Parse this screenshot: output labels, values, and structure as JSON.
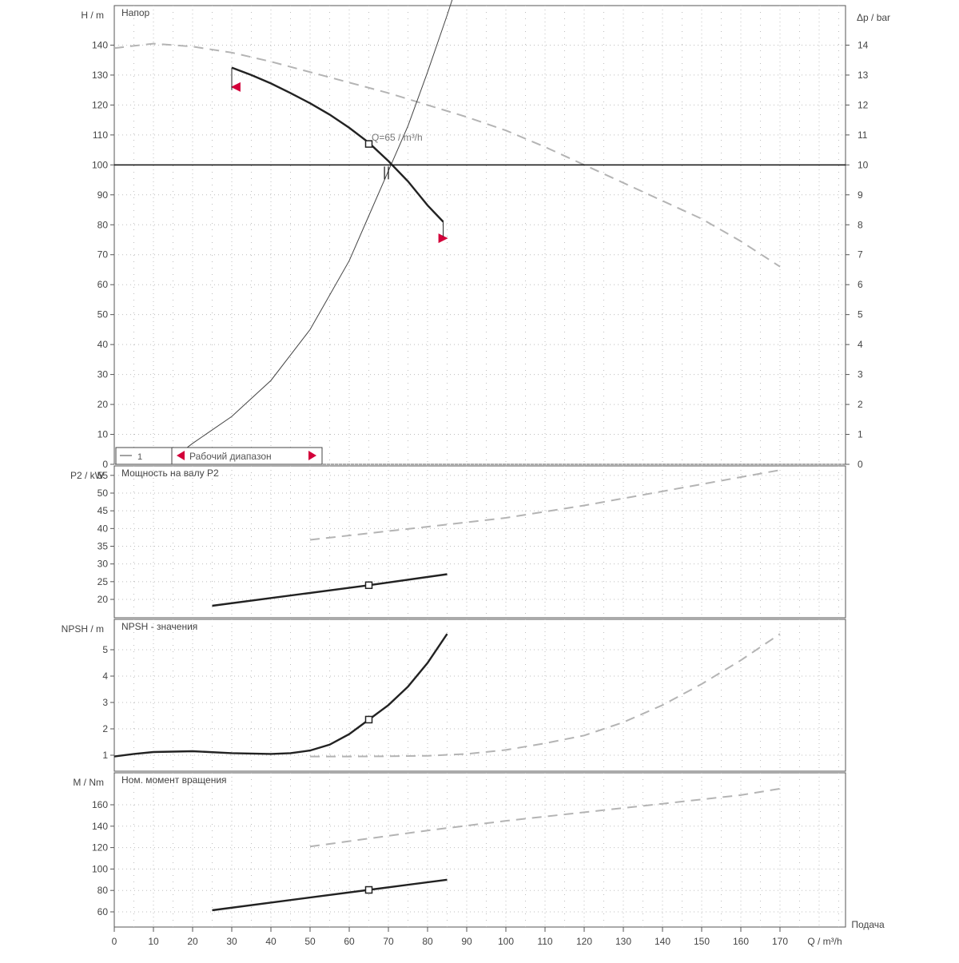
{
  "chart_data": [
    {
      "type": "line",
      "title": "Напор",
      "ylabel": "H / m",
      "ylabel_right": "Δp / bar",
      "xlim": [
        0,
        185
      ],
      "ylim": [
        0,
        155
      ],
      "ylim_right": [
        0,
        15.5
      ],
      "yticks": [
        0,
        10,
        20,
        30,
        40,
        50,
        60,
        70,
        80,
        90,
        100,
        110,
        120,
        130,
        140
      ],
      "yticks_right": [
        0,
        1,
        2,
        3,
        4,
        5,
        6,
        7,
        8,
        9,
        10,
        11,
        12,
        13,
        14
      ],
      "grid": true,
      "series": [
        {
          "style": "solid-bold",
          "x": [
            30,
            35,
            40,
            45,
            50,
            55,
            60,
            65,
            70,
            75,
            80,
            84
          ],
          "y": [
            132.5,
            130.0,
            127.2,
            124.0,
            120.6,
            116.8,
            112.4,
            107.4,
            101.3,
            94.5,
            86.5,
            81.0
          ]
        },
        {
          "style": "dashed-gray",
          "x": [
            0,
            10,
            20,
            30,
            40,
            50,
            60,
            70,
            80,
            90,
            100,
            110,
            120,
            130,
            140,
            150,
            160,
            170
          ],
          "y": [
            139,
            140.5,
            139.5,
            137.5,
            134.5,
            131,
            127.5,
            124,
            120,
            116,
            111.5,
            106,
            100,
            94,
            88,
            82,
            74.5,
            66
          ]
        },
        {
          "style": "system-curve",
          "x": [
            17,
            20,
            30,
            40,
            50,
            60,
            65,
            70,
            75,
            80,
            85,
            90
          ],
          "y": [
            4,
            7,
            16,
            28,
            45,
            68,
            83,
            98,
            113,
            131,
            150,
            170
          ]
        }
      ],
      "horizontal_line": 100,
      "duty_point": {
        "x": 65,
        "y": 107
      },
      "duty_label": "Q=65 / m³/h",
      "range_markers": [
        {
          "x": 31,
          "y": 126,
          "side": "left"
        },
        {
          "x": 84,
          "y": 75.5,
          "side": "right"
        }
      ],
      "legend": {
        "curve_label": "1",
        "range_label": "Рабочий диапазон"
      }
    },
    {
      "type": "line",
      "title": "Мощность на валу P2",
      "ylabel": "P2 / kW",
      "ylim": [
        15,
        57
      ],
      "yticks": [
        20,
        25,
        30,
        35,
        40,
        45,
        50,
        55
      ],
      "series": [
        {
          "style": "solid-bold",
          "x": [
            25,
            65,
            85
          ],
          "y": [
            18.2,
            24.0,
            27.1
          ]
        },
        {
          "style": "dashed-gray",
          "x": [
            50,
            80,
            100,
            120,
            140,
            160,
            170
          ],
          "y": [
            36.8,
            40.5,
            43.0,
            46.5,
            50.5,
            54.5,
            56.5
          ]
        }
      ],
      "duty_point": {
        "x": 65,
        "y": 24.0
      }
    },
    {
      "type": "line",
      "title": "NPSH - значения",
      "ylabel": "NPSH / m",
      "ylim": [
        0.6,
        6
      ],
      "yticks": [
        1,
        2,
        3,
        4,
        5
      ],
      "series": [
        {
          "style": "solid-bold",
          "x": [
            0,
            5,
            10,
            20,
            30,
            40,
            45,
            50,
            55,
            60,
            65,
            70,
            75,
            80,
            85
          ],
          "y": [
            0.95,
            1.05,
            1.12,
            1.15,
            1.08,
            1.05,
            1.08,
            1.18,
            1.4,
            1.8,
            2.35,
            2.9,
            3.6,
            4.5,
            5.6
          ]
        },
        {
          "style": "dashed-gray",
          "x": [
            50,
            60,
            70,
            80,
            90,
            100,
            110,
            120,
            130,
            140,
            150,
            160,
            170
          ],
          "y": [
            0.95,
            0.95,
            0.96,
            0.98,
            1.05,
            1.2,
            1.45,
            1.75,
            2.25,
            2.9,
            3.7,
            4.6,
            5.6
          ]
        }
      ],
      "duty_point": {
        "x": 65,
        "y": 2.35
      }
    },
    {
      "type": "line",
      "title": "Ном. момент вращения",
      "ylabel": "M / Nm",
      "xlabel": "Q / m³/h",
      "xlabel_right": "Подача",
      "ylim": [
        50,
        175
      ],
      "yticks": [
        60,
        80,
        100,
        120,
        140,
        160
      ],
      "xticks": [
        0,
        10,
        20,
        30,
        40,
        50,
        60,
        70,
        80,
        90,
        100,
        110,
        120,
        130,
        140,
        150,
        160,
        170
      ],
      "series": [
        {
          "style": "solid-bold",
          "x": [
            25,
            65,
            85
          ],
          "y": [
            61.5,
            80.5,
            90.0
          ]
        },
        {
          "style": "dashed-gray",
          "x": [
            50,
            80,
            100,
            120,
            140,
            160,
            170
          ],
          "y": [
            121,
            136,
            145,
            153,
            161,
            169,
            175
          ]
        }
      ],
      "duty_point": {
        "x": 65,
        "y": 80.5
      }
    }
  ],
  "colors": {
    "bold": "#222222",
    "dashed": "#b4b4b4",
    "grid": "#bdbdbd",
    "marker": "#d3003a",
    "frame": "#555555"
  }
}
